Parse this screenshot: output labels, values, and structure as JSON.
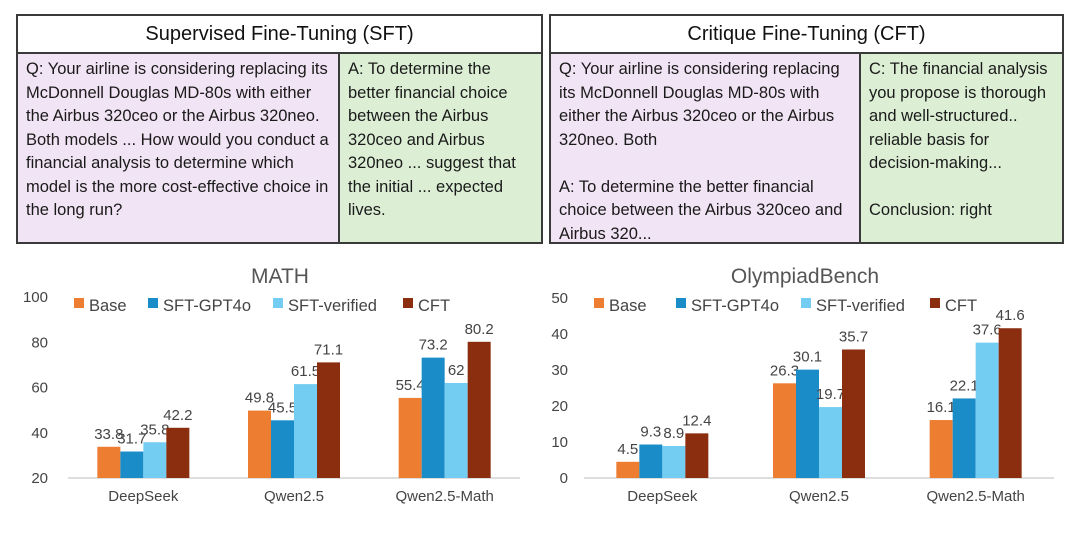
{
  "sft": {
    "title": "Supervised Fine-Tuning (SFT)",
    "question": "Q: Your airline is considering replacing its McDonnell Douglas MD-80s with either the Airbus 320ceo or the Airbus 320neo. Both models ...  How would you conduct a financial analysis to determine which model is the more cost-effective choice in the long run?",
    "answer": "A: To determine the better financial choice between the Airbus 320ceo and Airbus 320neo ... suggest that the initial ... expected lives."
  },
  "cft": {
    "title": "Critique Fine-Tuning (CFT)",
    "question": "Q: Your airline is considering replacing its McDonnell Douglas MD-80s with either the Airbus 320ceo or the Airbus 320neo. Both\n\nA: To determine the better financial choice between the Airbus 320ceo and Airbus 320...",
    "critique": "C: The financial analysis you propose is thorough and well-structured.. reliable basis for decision-making...\n\nConclusion: right"
  },
  "colors": {
    "Base": "#ed7d31",
    "SFT-GPT4o": "#1a8cc8",
    "SFT-verified": "#73cdf2",
    "CFT": "#8b2d0f"
  },
  "chart_data": [
    {
      "type": "bar",
      "title": "MATH",
      "categories": [
        "DeepSeek",
        "Qwen2.5",
        "Qwen2.5-Math"
      ],
      "series": [
        {
          "name": "Base",
          "values": [
            33.8,
            49.8,
            55.4
          ]
        },
        {
          "name": "SFT-GPT4o",
          "values": [
            31.7,
            45.5,
            73.2
          ]
        },
        {
          "name": "SFT-verified",
          "values": [
            35.8,
            61.5,
            62
          ]
        },
        {
          "name": "CFT",
          "values": [
            42.2,
            71.1,
            80.2
          ]
        }
      ],
      "ylim": [
        20,
        100
      ],
      "yticks": [
        20,
        40,
        60,
        80,
        100
      ],
      "legend": "top",
      "grid": false
    },
    {
      "type": "bar",
      "title": "OlympiadBench",
      "categories": [
        "DeepSeek",
        "Qwen2.5",
        "Qwen2.5-Math"
      ],
      "series": [
        {
          "name": "Base",
          "values": [
            4.5,
            26.3,
            16.1
          ]
        },
        {
          "name": "SFT-GPT4o",
          "values": [
            9.3,
            30.1,
            22.1
          ]
        },
        {
          "name": "SFT-verified",
          "values": [
            8.9,
            19.7,
            37.6
          ]
        },
        {
          "name": "CFT",
          "values": [
            12.4,
            35.7,
            41.6
          ]
        }
      ],
      "ylim": [
        0,
        50
      ],
      "yticks": [
        0,
        10,
        20,
        30,
        40,
        50
      ],
      "legend": "top",
      "grid": false
    }
  ]
}
